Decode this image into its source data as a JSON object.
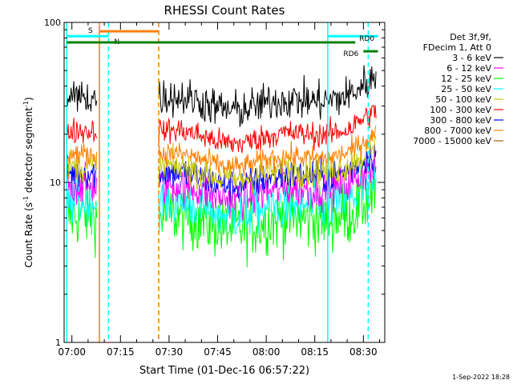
{
  "chart_data": {
    "type": "line",
    "title": "RHESSI Count Rates",
    "xlabel": "Start Time (01-Dec-16 06:57:22)",
    "ylabel_main": "Count Rate (s",
    "ylabel_sup1": "-1",
    "ylabel_mid": " detector segment",
    "ylabel_sup2": "-1",
    "ylabel_end": ")",
    "y_scale": "log",
    "ylim": [
      1,
      100
    ],
    "xlim_minutes": [
      -2.4,
      96.6
    ],
    "x_ticks": [
      {
        "minute": 0,
        "label": "07:00"
      },
      {
        "minute": 15,
        "label": "07:15"
      },
      {
        "minute": 30,
        "label": "07:30"
      },
      {
        "minute": 45,
        "label": "07:45"
      },
      {
        "minute": 60,
        "label": "08:00"
      },
      {
        "minute": 75,
        "label": "08:15"
      },
      {
        "minute": 90,
        "label": "08:30"
      }
    ],
    "y_ticks": [
      {
        "value": 1,
        "label": "1"
      },
      {
        "value": 10,
        "label": "10"
      },
      {
        "value": 100,
        "label": "100"
      }
    ],
    "legend_header": [
      "Det 3f,9f,",
      "FDecim 1, Att 0"
    ],
    "legend_placement": "right",
    "series": [
      {
        "name": "3 - 6 keV",
        "color": "#000000",
        "level": 34,
        "noise": 0.12
      },
      {
        "name": "6 - 12 keV",
        "color": "#ff00ff",
        "level": 9.5,
        "noise": 0.12
      },
      {
        "name": "12 - 25 keV",
        "color": "#00ff00",
        "level": 6.2,
        "noise": 0.2
      },
      {
        "name": "25 - 50 keV",
        "color": "#00ffff",
        "level": 7.5,
        "noise": 0.15
      },
      {
        "name": "50 - 100 keV",
        "color": "#c8c800",
        "level": 12.5,
        "noise": 0.1
      },
      {
        "name": "100 - 300 keV",
        "color": "#ff0000",
        "level": 21,
        "noise": 0.08
      },
      {
        "name": "300 - 800 keV",
        "color": "#0000ff",
        "level": 11.5,
        "noise": 0.1
      },
      {
        "name": "800 - 7000 keV",
        "color": "#ff8000",
        "level": 15,
        "noise": 0.07
      },
      {
        "name": "7000 - 15000 keV",
        "color": "#a06400",
        "level": null,
        "noise": 0
      }
    ],
    "gaps_minutes": [
      [
        7.8,
        26.8
      ]
    ],
    "data_segments_minutes": [
      [
        -1.6,
        7.8
      ],
      [
        26.8,
        94.0
      ]
    ],
    "bars": [
      {
        "label": "S",
        "color": "#ff8000",
        "start": 8.5,
        "end": 26.8,
        "value": 88
      },
      {
        "label": "N",
        "color": "#00ffff",
        "start": -1.6,
        "end": 11.3,
        "value": 82
      },
      {
        "label": "",
        "color": "#00ffff",
        "start": 79.0,
        "end": 94.5,
        "value": 82
      },
      {
        "label": "RD0",
        "color": "#008000",
        "start": -1.6,
        "end": 87.5,
        "value": 75
      },
      {
        "label": "RD6",
        "color": "#008000",
        "start": 90.0,
        "end": 94.5,
        "value": 66
      }
    ],
    "vlines": [
      {
        "minute": -1.6,
        "color": "#00ffff",
        "style": "solid"
      },
      {
        "minute": 8.5,
        "color": "#ff8000",
        "style": "solid"
      },
      {
        "minute": 11.3,
        "color": "#00ffff",
        "style": "dashed"
      },
      {
        "minute": 26.8,
        "color": "#ff8000",
        "style": "dashed"
      },
      {
        "minute": 79.0,
        "color": "#00ffff",
        "style": "solid"
      },
      {
        "minute": 91.5,
        "color": "#00ffff",
        "style": "dashed"
      }
    ],
    "footer_date": "1-Sep-2022 18:28"
  }
}
